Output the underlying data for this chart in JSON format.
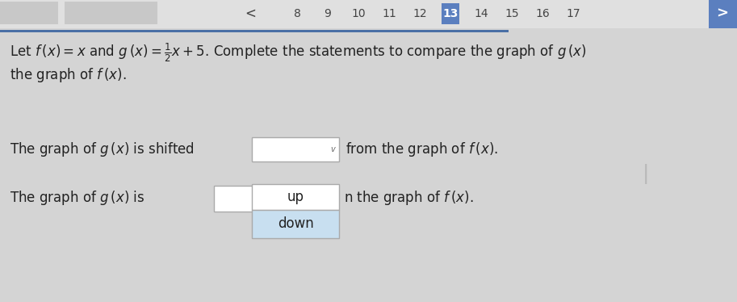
{
  "bg_color": "#d4d4d4",
  "top_nav_bg": "#e0e0e0",
  "top_blue_bar_color": "#4a6fa5",
  "page_numbers": [
    "8",
    "9",
    "10",
    "11",
    "12",
    "13",
    "14",
    "15",
    "16",
    "17"
  ],
  "active_page": "13",
  "active_page_color": "#5b7fbf",
  "active_page_text_color": "#ffffff",
  "nav_text_color": "#444444",
  "right_arrow_color": "#5b7fbf",
  "main_text_line1": "Let $f\\,(x) = x$ and $g\\,(x) = \\frac{1}{2}x + 5$. Complete the statements to compare the graph of $g\\,(x)$",
  "main_text_line2": "the graph of $f\\,(x)$.",
  "statement1_prefix": "The graph of $g\\,(x)$ is shifted",
  "statement1_suffix": "from the graph of $f\\,(x)$.",
  "statement2_prefix": "The graph of $g\\,(x)$ is",
  "statement2_suffix": "n the graph of $f\\,(x)$.",
  "dropdown_box_color": "#ffffff",
  "dropdown_border_color": "#aaaaaa",
  "popup_up_text": "up",
  "popup_down_text": "down",
  "popup_up_bg": "#ffffff",
  "popup_down_bg": "#c8dff0",
  "text_color": "#222222",
  "font_size_main": 12,
  "font_size_statement": 12,
  "cursor_color": "#b8b8b8",
  "left_btn1_color": "#c8c8c8",
  "left_btn2_color": "#c8c8c8"
}
